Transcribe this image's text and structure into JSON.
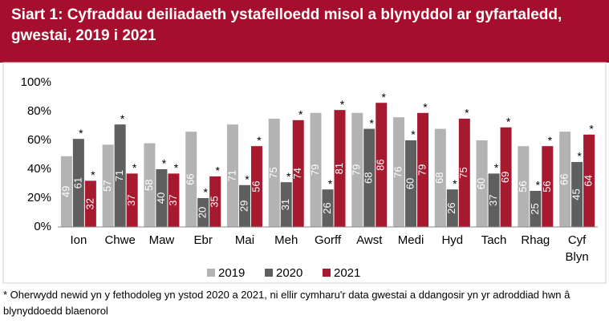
{
  "chart_data": {
    "type": "bar",
    "title": "Siart 1: Cyfraddau deiliadaeth ystafelloedd misol a blynyddol ar gyfartaledd, gwestai, 2019 i 2021",
    "categories": [
      "Ion",
      "Chwe",
      "Maw",
      "Ebr",
      "Mai",
      "Meh",
      "Gorff",
      "Awst",
      "Medi",
      "Hyd",
      "Tach",
      "Rhag",
      "Cyf Blyn"
    ],
    "series": [
      {
        "name": "2019",
        "color": "#b3b3b3",
        "values": [
          49,
          57,
          58,
          66,
          71,
          75,
          79,
          79,
          76,
          68,
          60,
          56,
          66
        ]
      },
      {
        "name": "2020",
        "color": "#5f5f5f",
        "note_mark": "*",
        "values": [
          61,
          71,
          40,
          20,
          29,
          31,
          26,
          68,
          60,
          26,
          37,
          25,
          45
        ]
      },
      {
        "name": "2021",
        "color": "#a6192e",
        "note_mark": "*",
        "values": [
          32,
          37,
          37,
          35,
          56,
          74,
          81,
          86,
          79,
          75,
          69,
          56,
          64
        ]
      }
    ],
    "ylim": [
      0,
      100
    ],
    "yticks": [
      {
        "value": 0,
        "label": "0%"
      },
      {
        "value": 20,
        "label": "20%"
      },
      {
        "value": 40,
        "label": "40%"
      },
      {
        "value": 60,
        "label": "60%"
      },
      {
        "value": 80,
        "label": "80%"
      },
      {
        "value": 100,
        "label": "100%"
      }
    ],
    "grid": false,
    "legend": "bottom",
    "header_color": "#a50f2d",
    "footnote": "* Oherwydd newid yn y fethodoleg yn ystod 2020 a 2021, ni ellir cymharu'r data gwestai a ddangosir yn yr adroddiad hwn â blynyddoedd blaenorol"
  }
}
